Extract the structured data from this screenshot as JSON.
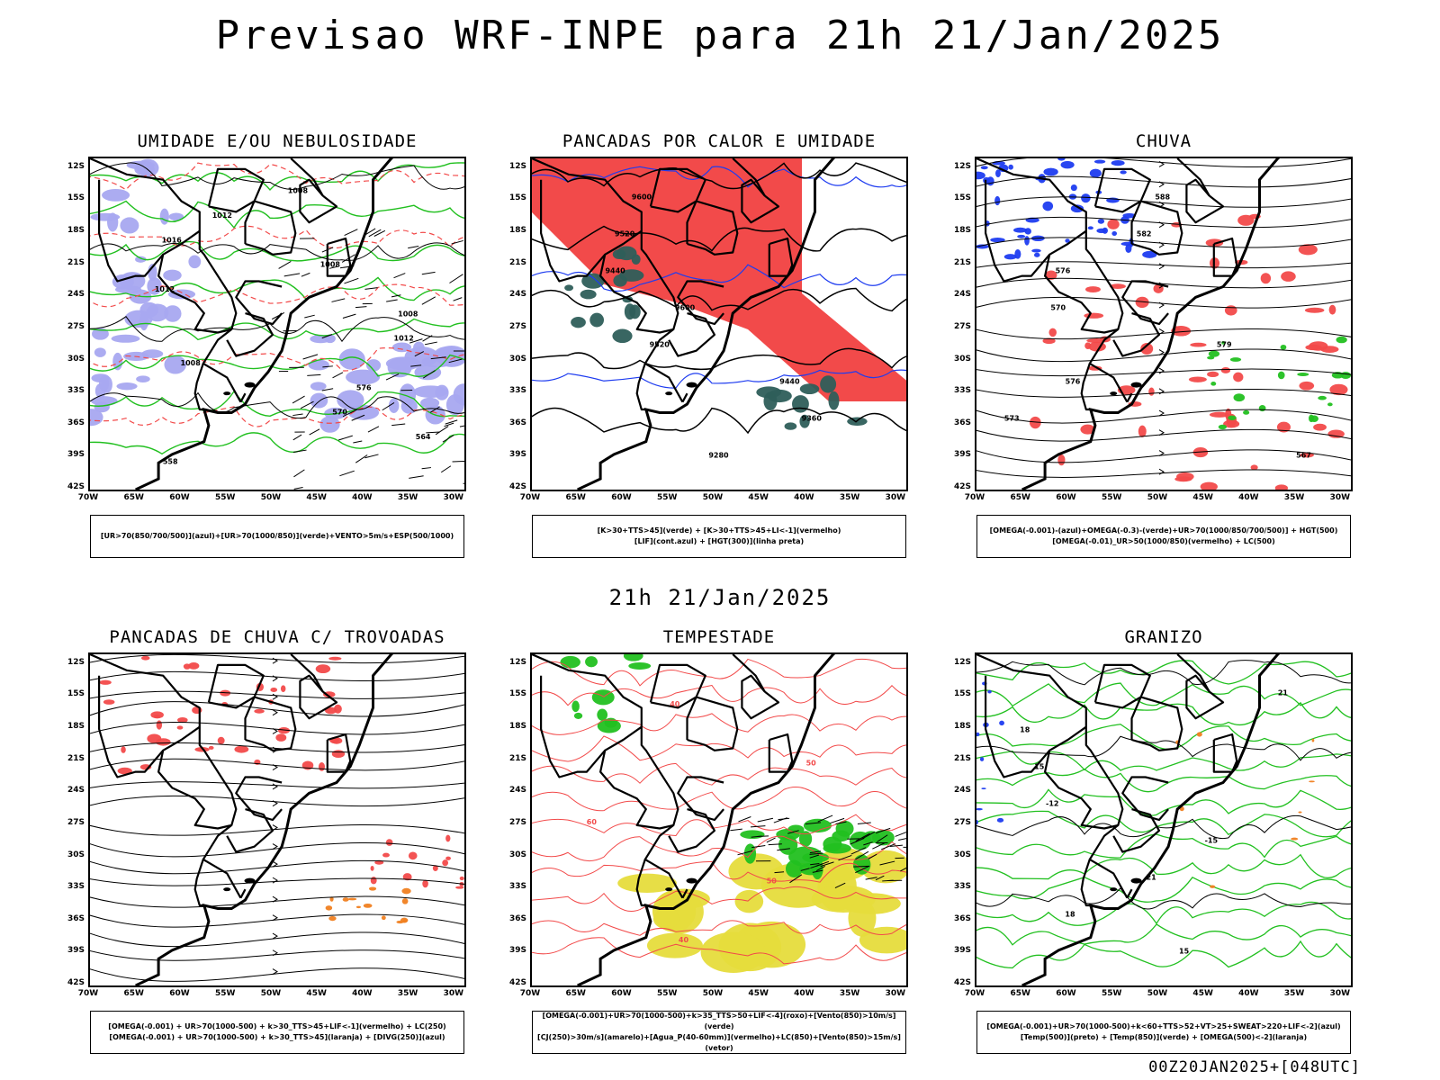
{
  "title": "Previsao WRF-INPE  para 21h 21/Jan/2025",
  "mid_title": "21h 21/Jan/2025",
  "footer": "00Z20JAN2025+[048UTC]",
  "lat_labels": [
    "12S",
    "15S",
    "18S",
    "21S",
    "24S",
    "27S",
    "30S",
    "33S",
    "36S",
    "39S",
    "42S"
  ],
  "lon_labels": [
    "70W",
    "65W",
    "60W",
    "55W",
    "50W",
    "45W",
    "40W",
    "35W",
    "30W"
  ],
  "panels": [
    {
      "title": "UMIDADE E/OU NEBULOSIDADE",
      "legend": [
        "[UR>70(850/700/500)](azul)+[UR>70(1000/850)](verde)+VENTO>5m/s+ESP(500/1000)"
      ],
      "labels": [
        "1008",
        "1012",
        "1016",
        "1008",
        "1012",
        "1008",
        "1012",
        "1008",
        "576",
        "570",
        "564",
        "558"
      ]
    },
    {
      "title": "PANCADAS POR CALOR E UMIDADE",
      "legend": [
        "[K>30+TTS>45](verde) + [K>30+TTS>45+LI<-1](vermelho)",
        "[LIF](cont.azul) + [HGT(300)](linha preta)"
      ],
      "labels": [
        "9600",
        "9520",
        "9440",
        "9600",
        "9520",
        "9440",
        "9360",
        "9280"
      ]
    },
    {
      "title": "CHUVA",
      "legend": [
        "[OMEGA(-0.001)-(azul)+OMEGA(-0.3)-(verde)+UR>70(1000/850/700/500)] + HGT(500)",
        "[OMEGA(-0.01)_UR>50(1000/850)(vermelho) + LC(500)"
      ],
      "labels": [
        "588",
        "582",
        "576",
        "570",
        "579",
        "576",
        "573",
        "567"
      ]
    },
    {
      "title": "PANCADAS DE CHUVA C/ TROVOADAS",
      "legend": [
        "[OMEGA(-0.001) + UR>70(1000-500) + k>30_TTS>45+LIF<-1](vermelho) + LC(250)",
        "[OMEGA(-0.001) + UR>70(1000-500) + k>30_TTS>45](laranja) + [DIVG(250)](azul)"
      ],
      "labels": []
    },
    {
      "title": "TEMPESTADE",
      "legend": [
        "[OMEGA(-0.001)+UR>70(1000-500)+k>35_TTS>50+LIF<-4](roxo)+[Vento(850)>10m/s](verde)",
        "[CJ(250)>30m/s](amarelo)+[Agua_P(40-60mm)](vermelho)+LC(850)+[Vento(850)>15m/s](vetor)"
      ],
      "labels": [
        "40",
        "50",
        "60",
        "50",
        "40"
      ]
    },
    {
      "title": "GRANIZO",
      "legend": [
        "[OMEGA(-0.001)+UR>70(1000-500)+k<60+TTS>52+VT>25+SWEAT>220+LIF<-2](azul)",
        "[Temp(500)](preto) + [Temp(850)](verde) + [OMEGA(500)<-2](laranja)"
      ],
      "labels": [
        "21",
        "18",
        "15",
        "-12",
        "-15",
        "21",
        "18",
        "15"
      ]
    }
  ],
  "colors": {
    "red": "#f24a4a",
    "green": "#22c020",
    "blue": "#1e3cf0",
    "lavender": "#a8a8f0",
    "teal": "#2e5e5a",
    "yellow": "#e6dc3c",
    "orange": "#f08020"
  }
}
